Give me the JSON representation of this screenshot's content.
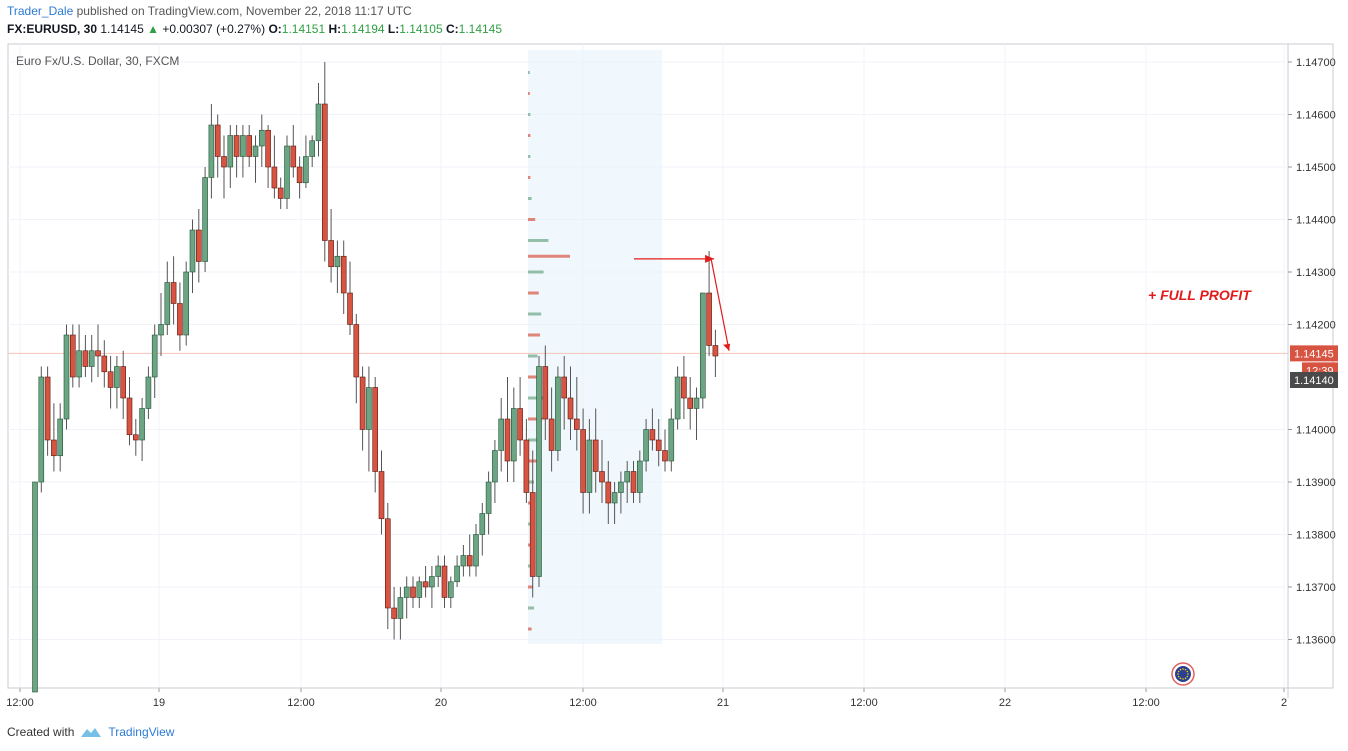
{
  "header": {
    "user": "Trader_Dale",
    "published": " published on TradingView.com, November 22, 2018 11:17 UTC",
    "symbol": "FX:EURUSD, 30",
    "last": "1.14145",
    "change": "+0.00307 (+0.27%)",
    "o_label": "O:",
    "o": "1.14151",
    "h_label": "H:",
    "h": "1.14194",
    "l_label": "L:",
    "l": "1.14105",
    "c_label": "C:",
    "c": "1.14145"
  },
  "footer": {
    "created_with": "Created with",
    "brand": "TradingView"
  },
  "colors": {
    "up": "#6ba583",
    "down": "#d75442",
    "up_border": "#225437",
    "down_border": "#5b1a13",
    "grid": "#f0f3fa",
    "vp_bg": "#e6f3fb",
    "annotation": "#e21b1b",
    "price_line": "#f7c2b9",
    "price_badge": "#d75442",
    "prev_badge": "#4a4a4a"
  },
  "chart_data": {
    "type": "candlestick",
    "title": "Euro Fx/U.S. Dollar, 30, FXCM",
    "xlabel": "",
    "ylabel": "",
    "ylim": [
      1.135,
      1.1472
    ],
    "yticks": [
      "1.14700",
      "1.14600",
      "1.14500",
      "1.14400",
      "1.14300",
      "1.14200",
      "1.14000",
      "1.13900",
      "1.13800",
      "1.13700",
      "1.13600"
    ],
    "xticks": [
      "12:00",
      "19",
      "12:00",
      "20",
      "12:00",
      "21",
      "12:00",
      "22",
      "12:00",
      "2"
    ],
    "grid": true,
    "candles": [
      [
        1.135,
        1.139,
        1.135,
        1.139
      ],
      [
        1.139,
        1.1412,
        1.1388,
        1.141
      ],
      [
        1.141,
        1.1412,
        1.1395,
        1.1398
      ],
      [
        1.1398,
        1.1405,
        1.1392,
        1.1395
      ],
      [
        1.1395,
        1.1405,
        1.1392,
        1.1402
      ],
      [
        1.1402,
        1.142,
        1.14,
        1.1418
      ],
      [
        1.1418,
        1.142,
        1.1408,
        1.141
      ],
      [
        1.141,
        1.142,
        1.1408,
        1.1415
      ],
      [
        1.1415,
        1.1418,
        1.141,
        1.1412
      ],
      [
        1.1412,
        1.1418,
        1.1409,
        1.1415
      ],
      [
        1.1415,
        1.142,
        1.141,
        1.1414
      ],
      [
        1.1414,
        1.1417,
        1.1408,
        1.1411
      ],
      [
        1.1411,
        1.1414,
        1.1404,
        1.1408
      ],
      [
        1.1408,
        1.1414,
        1.1404,
        1.1412
      ],
      [
        1.1412,
        1.1415,
        1.1402,
        1.1406
      ],
      [
        1.1406,
        1.141,
        1.1397,
        1.1399
      ],
      [
        1.1399,
        1.1402,
        1.1395,
        1.1398
      ],
      [
        1.1398,
        1.1406,
        1.1394,
        1.1404
      ],
      [
        1.1404,
        1.1412,
        1.1402,
        1.141
      ],
      [
        1.141,
        1.142,
        1.1406,
        1.1418
      ],
      [
        1.1418,
        1.1426,
        1.1414,
        1.142
      ],
      [
        1.142,
        1.1432,
        1.1418,
        1.1428
      ],
      [
        1.1428,
        1.1433,
        1.142,
        1.1424
      ],
      [
        1.1424,
        1.1428,
        1.1415,
        1.1418
      ],
      [
        1.1418,
        1.1432,
        1.1416,
        1.143
      ],
      [
        1.143,
        1.144,
        1.1426,
        1.1438
      ],
      [
        1.1438,
        1.1442,
        1.1428,
        1.1432
      ],
      [
        1.1432,
        1.145,
        1.143,
        1.1448
      ],
      [
        1.1448,
        1.1462,
        1.1444,
        1.1458
      ],
      [
        1.1458,
        1.146,
        1.1448,
        1.1452
      ],
      [
        1.1452,
        1.1456,
        1.1444,
        1.145
      ],
      [
        1.145,
        1.1458,
        1.1446,
        1.1456
      ],
      [
        1.1456,
        1.1458,
        1.1448,
        1.1452
      ],
      [
        1.1452,
        1.1458,
        1.1448,
        1.1456
      ],
      [
        1.1456,
        1.1458,
        1.145,
        1.1452
      ],
      [
        1.1452,
        1.1456,
        1.1447,
        1.1454
      ],
      [
        1.1454,
        1.146,
        1.145,
        1.1457
      ],
      [
        1.1457,
        1.1458,
        1.1446,
        1.145
      ],
      [
        1.145,
        1.1456,
        1.1444,
        1.1446
      ],
      [
        1.1446,
        1.1448,
        1.1442,
        1.1444
      ],
      [
        1.1444,
        1.1456,
        1.1442,
        1.1454
      ],
      [
        1.1454,
        1.1458,
        1.1448,
        1.145
      ],
      [
        1.145,
        1.1452,
        1.1444,
        1.1447
      ],
      [
        1.1447,
        1.1456,
        1.1446,
        1.1452
      ],
      [
        1.1452,
        1.1456,
        1.145,
        1.1455
      ],
      [
        1.1455,
        1.1466,
        1.1452,
        1.1462
      ],
      [
        1.1462,
        1.147,
        1.1432,
        1.1436
      ],
      [
        1.1436,
        1.1442,
        1.1428,
        1.1431
      ],
      [
        1.1431,
        1.1436,
        1.1426,
        1.1433
      ],
      [
        1.1433,
        1.1436,
        1.1422,
        1.1426
      ],
      [
        1.1426,
        1.1432,
        1.1418,
        1.142
      ],
      [
        1.142,
        1.1422,
        1.1405,
        1.141
      ],
      [
        1.141,
        1.1412,
        1.1396,
        1.14
      ],
      [
        1.14,
        1.1412,
        1.1392,
        1.1408
      ],
      [
        1.1408,
        1.141,
        1.1388,
        1.1392
      ],
      [
        1.1392,
        1.1396,
        1.138,
        1.1383
      ],
      [
        1.1383,
        1.1386,
        1.1362,
        1.1366
      ],
      [
        1.1366,
        1.137,
        1.136,
        1.1364
      ],
      [
        1.1364,
        1.137,
        1.136,
        1.1368
      ],
      [
        1.1368,
        1.1372,
        1.1364,
        1.137
      ],
      [
        1.137,
        1.1372,
        1.1366,
        1.1368
      ],
      [
        1.1368,
        1.1372,
        1.1366,
        1.1371
      ],
      [
        1.1371,
        1.1374,
        1.1368,
        1.137
      ],
      [
        1.137,
        1.1374,
        1.1366,
        1.1372
      ],
      [
        1.1372,
        1.1376,
        1.137,
        1.1374
      ],
      [
        1.1374,
        1.1376,
        1.1366,
        1.1368
      ],
      [
        1.1368,
        1.1372,
        1.1366,
        1.1371
      ],
      [
        1.1371,
        1.1376,
        1.137,
        1.1374
      ],
      [
        1.1374,
        1.1378,
        1.1372,
        1.1376
      ],
      [
        1.1376,
        1.138,
        1.1372,
        1.1374
      ],
      [
        1.1374,
        1.1382,
        1.1372,
        1.138
      ],
      [
        1.138,
        1.1386,
        1.1376,
        1.1384
      ],
      [
        1.1384,
        1.1392,
        1.138,
        1.139
      ],
      [
        1.139,
        1.1398,
        1.1386,
        1.1396
      ],
      [
        1.1396,
        1.1406,
        1.1392,
        1.1402
      ],
      [
        1.1402,
        1.141,
        1.139,
        1.1394
      ],
      [
        1.1394,
        1.1408,
        1.139,
        1.1404
      ],
      [
        1.1404,
        1.141,
        1.1395,
        1.1398
      ],
      [
        1.1398,
        1.1402,
        1.1386,
        1.1388
      ],
      [
        1.1388,
        1.1396,
        1.1368,
        1.1372
      ],
      [
        1.1372,
        1.1414,
        1.137,
        1.1412
      ],
      [
        1.1412,
        1.1416,
        1.1398,
        1.1402
      ],
      [
        1.1402,
        1.1408,
        1.1392,
        1.1396
      ],
      [
        1.1396,
        1.1412,
        1.1394,
        1.141
      ],
      [
        1.141,
        1.1414,
        1.14,
        1.1406
      ],
      [
        1.1406,
        1.1412,
        1.1398,
        1.1402
      ],
      [
        1.1402,
        1.141,
        1.1396,
        1.14
      ],
      [
        1.14,
        1.1404,
        1.1384,
        1.1388
      ],
      [
        1.1388,
        1.1402,
        1.1384,
        1.1398
      ],
      [
        1.1398,
        1.1404,
        1.1388,
        1.1392
      ],
      [
        1.1392,
        1.1398,
        1.1386,
        1.139
      ],
      [
        1.139,
        1.1394,
        1.1382,
        1.1386
      ],
      [
        1.1386,
        1.139,
        1.1382,
        1.1388
      ],
      [
        1.1388,
        1.1392,
        1.1384,
        1.139
      ],
      [
        1.139,
        1.1394,
        1.1386,
        1.1392
      ],
      [
        1.1392,
        1.1394,
        1.1386,
        1.1388
      ],
      [
        1.1388,
        1.1396,
        1.1386,
        1.1394
      ],
      [
        1.1394,
        1.1402,
        1.1392,
        1.14
      ],
      [
        1.14,
        1.1404,
        1.1396,
        1.1398
      ],
      [
        1.1398,
        1.1402,
        1.1393,
        1.1396
      ],
      [
        1.1396,
        1.14,
        1.1392,
        1.1394
      ],
      [
        1.1394,
        1.1404,
        1.1392,
        1.1402
      ],
      [
        1.1402,
        1.1412,
        1.14,
        1.141
      ],
      [
        1.141,
        1.1414,
        1.1402,
        1.1406
      ],
      [
        1.1406,
        1.141,
        1.14,
        1.1404
      ],
      [
        1.1404,
        1.1408,
        1.1398,
        1.1406
      ],
      [
        1.1406,
        1.1426,
        1.1404,
        1.1426
      ],
      [
        1.1426,
        1.1434,
        1.1414,
        1.1416
      ],
      [
        1.1416,
        1.1419,
        1.141,
        1.1414
      ]
    ],
    "volume_profile": [
      [
        1.1362,
        6,
        0
      ],
      [
        1.1366,
        10,
        1
      ],
      [
        1.137,
        8,
        0
      ],
      [
        1.1374,
        6,
        1
      ],
      [
        1.1378,
        4,
        0
      ],
      [
        1.1382,
        4,
        1
      ],
      [
        1.1386,
        6,
        0
      ],
      [
        1.139,
        10,
        1
      ],
      [
        1.1394,
        16,
        0
      ],
      [
        1.1398,
        20,
        1
      ],
      [
        1.1402,
        24,
        0
      ],
      [
        1.1406,
        28,
        1
      ],
      [
        1.141,
        22,
        0
      ],
      [
        1.1414,
        16,
        1
      ],
      [
        1.1418,
        20,
        0
      ],
      [
        1.1422,
        22,
        1
      ],
      [
        1.1426,
        18,
        0
      ],
      [
        1.143,
        26,
        1
      ],
      [
        1.1433,
        70,
        0
      ],
      [
        1.1436,
        34,
        1
      ],
      [
        1.144,
        12,
        0
      ],
      [
        1.1444,
        6,
        1
      ],
      [
        1.1448,
        4,
        0
      ],
      [
        1.1452,
        4,
        1
      ],
      [
        1.1456,
        4,
        0
      ],
      [
        1.146,
        4,
        1
      ],
      [
        1.1464,
        3,
        0
      ],
      [
        1.1468,
        3,
        1
      ]
    ],
    "annotations": {
      "label": "+ FULL PROFIT",
      "level": 1.14325,
      "start_bar": 61,
      "target_bar": 107,
      "current_price": "1.14145",
      "current_value": 1.14145,
      "countdown": "12:39",
      "prev_price": "1.14140",
      "prev_value": 1.1414
    }
  }
}
